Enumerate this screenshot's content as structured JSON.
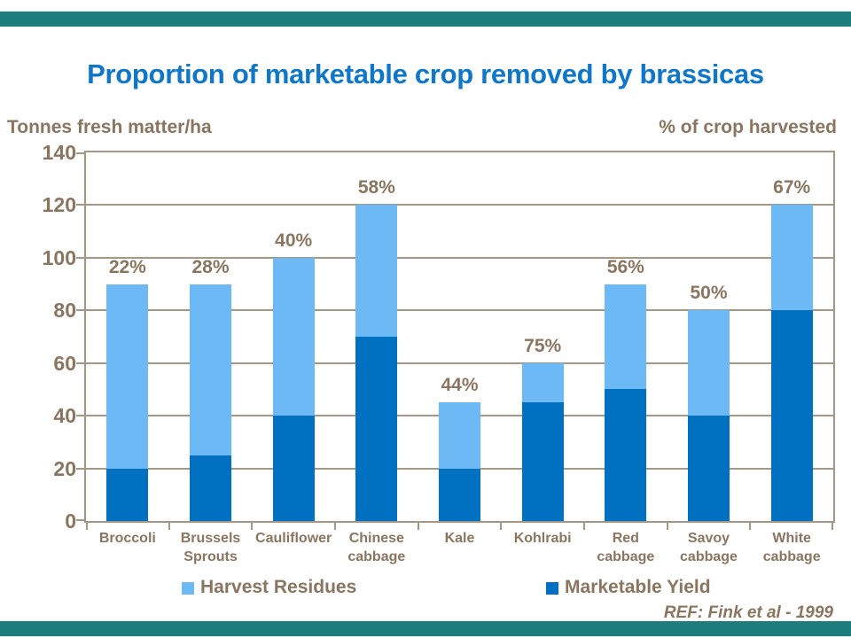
{
  "slide": {
    "title": "Proportion of marketable crop removed by brassicas",
    "left_axis_caption": "Tonnes fresh matter/ha",
    "right_axis_caption": "% of crop harvested",
    "reference": "REF: Fink et al - 1999"
  },
  "colors": {
    "title_blue": "#0F76C8",
    "text_brown": "#8A7660",
    "grid_brown": "#A59786",
    "harvest_residues_light_blue": "#6CB9F5",
    "marketable_yield_dark_blue": "#0070C0",
    "teal_rule": "#1D7C7C"
  },
  "legend": {
    "items": [
      {
        "label": "Harvest Residues",
        "color": "#6CB9F5"
      },
      {
        "label": "Marketable Yield",
        "color": "#0070C0"
      }
    ]
  },
  "chart_data": {
    "type": "bar",
    "stacked": true,
    "title": "Proportion of marketable crop removed by brassicas",
    "xlabel": "",
    "ylabel": "Tonnes fresh matter/ha",
    "secondary_label": "% of crop harvested",
    "categories": [
      "Broccoli",
      "Brussels Sprouts",
      "Cauliflower",
      "Chinese cabbage",
      "Kale",
      "Kohlrabi",
      "Red cabbage",
      "Savoy cabbage",
      "White cabbage"
    ],
    "category_lines": [
      [
        "Broccoli"
      ],
      [
        "Brussels",
        "Sprouts"
      ],
      [
        "Cauliflower"
      ],
      [
        "Chinese",
        "cabbage"
      ],
      [
        "Kale"
      ],
      [
        "Kohlrabi"
      ],
      [
        "Red",
        "cabbage"
      ],
      [
        "Savoy",
        "cabbage"
      ],
      [
        "White",
        "cabbage"
      ]
    ],
    "series": [
      {
        "name": "Marketable Yield",
        "color": "#0070C0",
        "values": [
          20,
          25,
          40,
          70,
          20,
          45,
          50,
          40,
          80
        ]
      },
      {
        "name": "Harvest Residues",
        "color": "#6CB9F5",
        "values": [
          70,
          65,
          60,
          50,
          25,
          15,
          40,
          40,
          40
        ]
      }
    ],
    "totals": [
      90,
      90,
      100,
      120,
      45,
      60,
      90,
      80,
      120
    ],
    "bar_labels": [
      "22%",
      "28%",
      "40%",
      "58%",
      "44%",
      "75%",
      "56%",
      "50%",
      "67%"
    ],
    "ylim": [
      0,
      140
    ],
    "yticks": [
      0,
      20,
      40,
      60,
      80,
      100,
      120,
      140
    ],
    "grid": true,
    "legend_position": "bottom"
  }
}
